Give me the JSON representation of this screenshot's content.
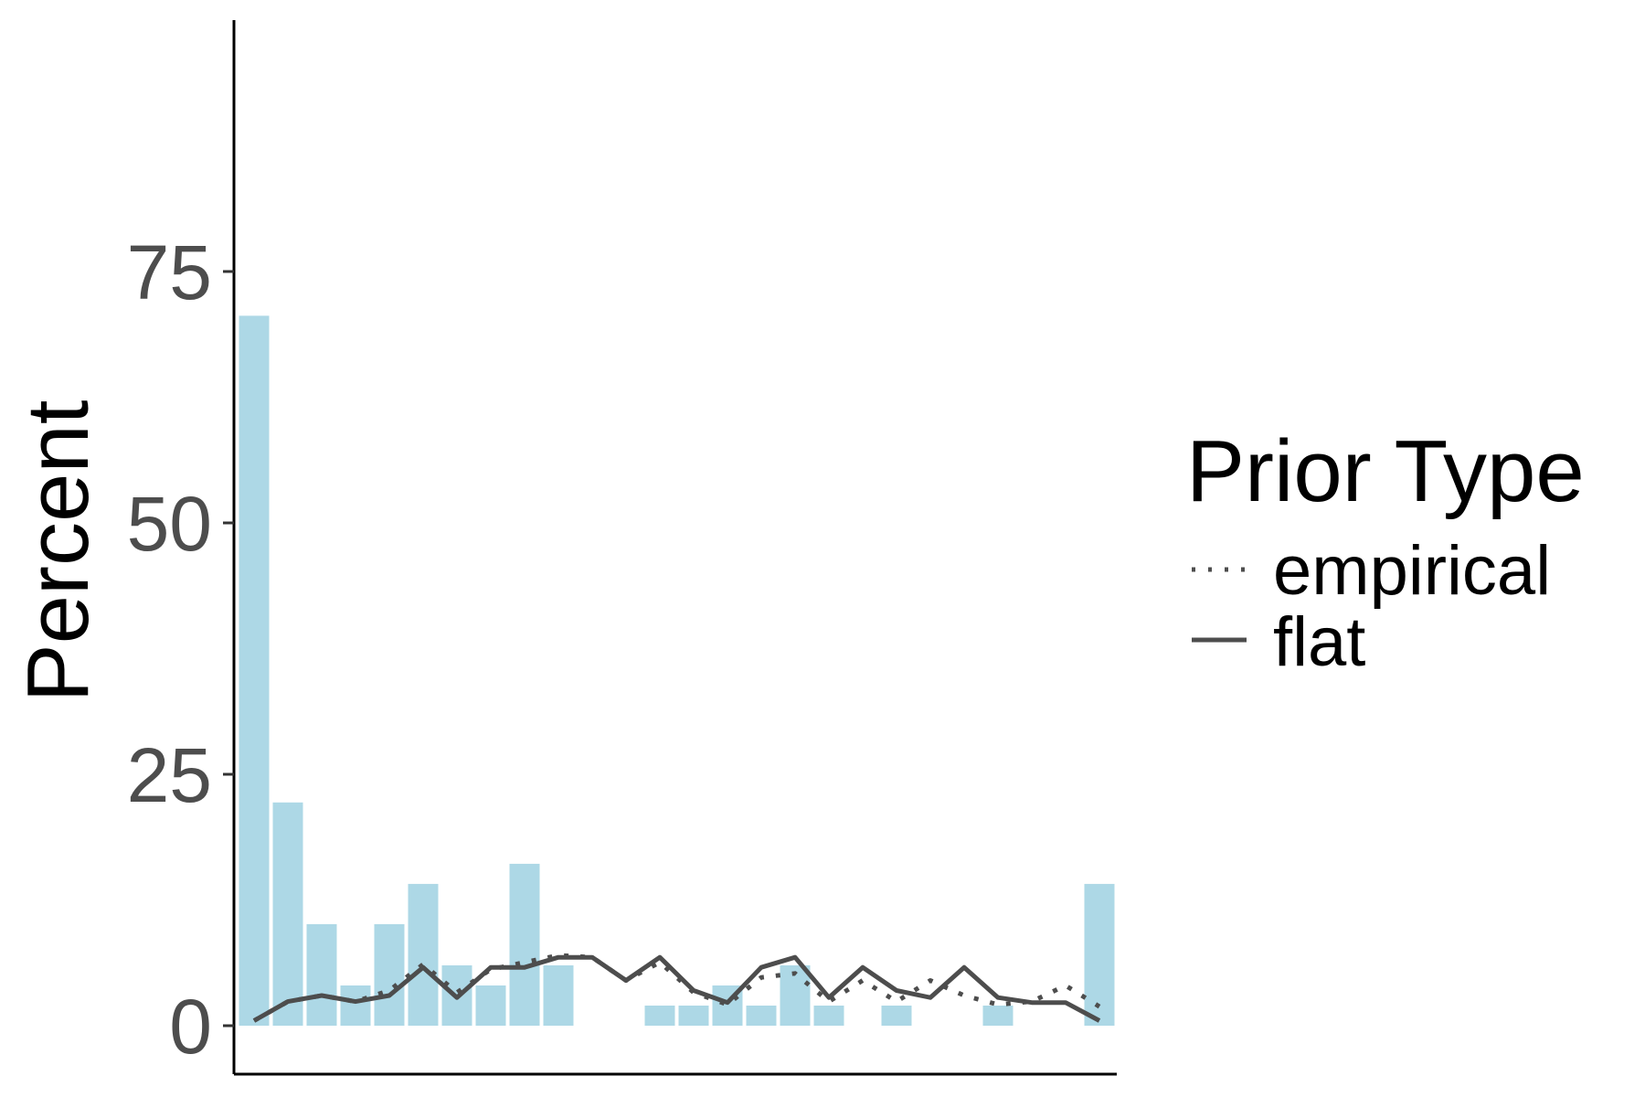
{
  "chart_data": {
    "type": "bar",
    "ylabel": "Percent",
    "xlabel": "",
    "ylim": [
      -4.7,
      100
    ],
    "y_ticks": [
      "0",
      "25",
      "50",
      "75"
    ],
    "y_tick_values": [
      0,
      25,
      50,
      75
    ],
    "grid": false,
    "bar_color": "#add8e6",
    "line_color": "#4d4d4d",
    "bars": {
      "x": [
        1,
        2,
        3,
        4,
        5,
        6,
        7,
        8,
        9,
        10,
        11,
        12,
        13,
        14,
        15,
        16,
        17,
        18,
        19,
        20,
        21,
        22,
        23,
        24,
        25,
        26
      ],
      "values": [
        70.6,
        22.2,
        10.1,
        4.0,
        10.1,
        14.1,
        6.0,
        4.0,
        16.1,
        6.0,
        0,
        0,
        2.0,
        2.0,
        4.0,
        2.0,
        6.0,
        2.0,
        0,
        2.0,
        0,
        0,
        2.0,
        0,
        0,
        14.1
      ]
    },
    "series": [
      {
        "name": "empirical",
        "linestyle": "dotted",
        "x": [
          1,
          2,
          3,
          4,
          5,
          6,
          7,
          8,
          9,
          10,
          11,
          12,
          13,
          14,
          15,
          16,
          17,
          18,
          19,
          20,
          21,
          22,
          23,
          24,
          25,
          26
        ],
        "values": [
          0.5,
          2.4,
          3.0,
          2.4,
          3.5,
          6.1,
          3.3,
          5.6,
          6.3,
          7.0,
          6.8,
          4.5,
          6.3,
          3.3,
          2.1,
          4.8,
          5.2,
          2.4,
          4.5,
          2.4,
          4.5,
          3.0,
          2.1,
          2.4,
          4.0,
          1.9
        ]
      },
      {
        "name": "flat",
        "linestyle": "solid",
        "x": [
          1,
          2,
          3,
          4,
          5,
          6,
          7,
          8,
          9,
          10,
          11,
          12,
          13,
          14,
          15,
          16,
          17,
          18,
          19,
          20,
          21,
          22,
          23,
          24,
          25,
          26
        ],
        "values": [
          0.5,
          2.4,
          3.0,
          2.4,
          3.0,
          5.8,
          2.8,
          5.8,
          5.8,
          6.8,
          6.8,
          4.5,
          6.8,
          3.5,
          2.3,
          5.8,
          6.8,
          2.8,
          5.8,
          3.5,
          2.8,
          5.8,
          2.8,
          2.3,
          2.3,
          0.5
        ]
      }
    ],
    "legend": {
      "title": "Prior Type",
      "position": "right",
      "entries": [
        {
          "label": "empirical",
          "linestyle": "dotted"
        },
        {
          "label": "flat",
          "linestyle": "solid"
        }
      ]
    }
  }
}
